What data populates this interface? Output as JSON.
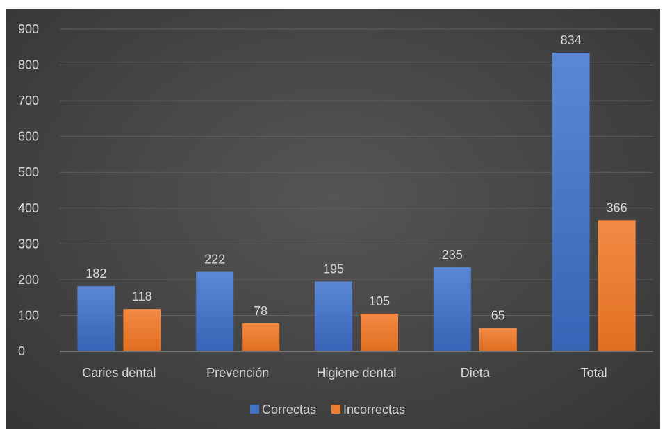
{
  "chart_data": {
    "type": "bar",
    "categories": [
      "Caries dental",
      "Prevención",
      "Higiene dental",
      "Dieta",
      "Total"
    ],
    "series": [
      {
        "name": "Correctas",
        "values": [
          182,
          222,
          195,
          235,
          834
        ],
        "color": "#4472c4"
      },
      {
        "name": "Incorrectas",
        "values": [
          118,
          78,
          105,
          65,
          366
        ],
        "color": "#ed7d31"
      }
    ],
    "yticks": [
      "0",
      "100",
      "200",
      "300",
      "400",
      "500",
      "600",
      "700",
      "800",
      "900"
    ],
    "ylim": [
      0,
      900
    ],
    "grid": true,
    "legend_position": "bottom",
    "data_labels": true
  }
}
